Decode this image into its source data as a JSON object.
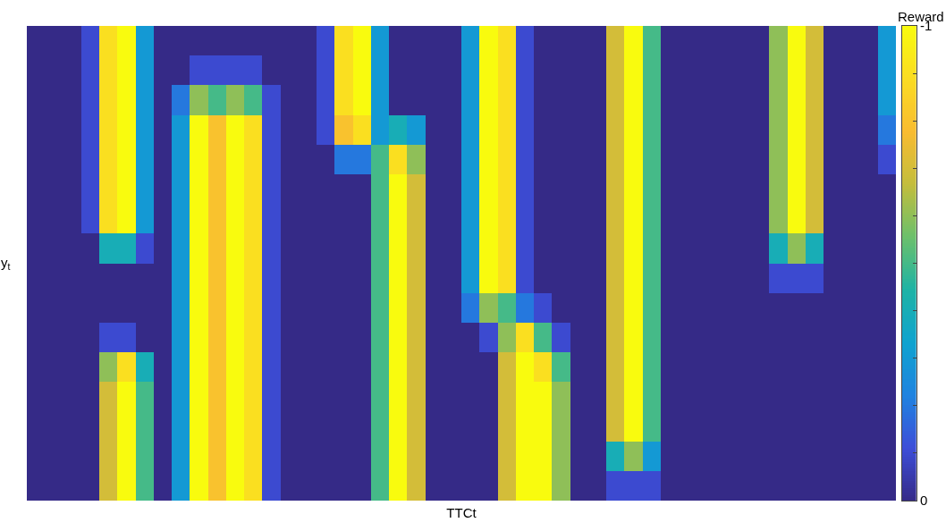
{
  "chart_data": {
    "type": "heatmap",
    "xlabel": "TTCt",
    "ylabel": "y$_{t}$",
    "clabel": "Reward",
    "categories": [
      null,
      null,
      null,
      null,
      null,
      null,
      null,
      null,
      null,
      null,
      null,
      null,
      null,
      null,
      null,
      null,
      null,
      null,
      null,
      null,
      null,
      null,
      null,
      null,
      null,
      null,
      null,
      null,
      null,
      null,
      null,
      null,
      null,
      null,
      null,
      null,
      null,
      null,
      null,
      null,
      null,
      null,
      null,
      null,
      null,
      null,
      null,
      null
    ],
    "y_categories": [
      null,
      null,
      null,
      null,
      null,
      null,
      null,
      null,
      null,
      null,
      null,
      null,
      null,
      null,
      null,
      null
    ],
    "clim": [
      0,
      -1
    ],
    "cticks": [
      0,
      {
        "value": -0.1,
        "label": null
      },
      {
        "value": -0.2,
        "label": null
      },
      {
        "value": -0.3,
        "label": null
      },
      {
        "value": -0.4,
        "label": null
      },
      {
        "value": -0.5,
        "label": null
      },
      {
        "value": -0.6,
        "label": null
      },
      {
        "value": -0.7,
        "label": null
      },
      {
        "value": -0.8,
        "label": null
      },
      {
        "value": -0.9,
        "label": null
      },
      -1
    ],
    "cells": [
      [
        0,
        0,
        0,
        -0.1,
        -0.9,
        -1,
        -0.3,
        0,
        0,
        0,
        0,
        0,
        0,
        0,
        0,
        0,
        -0.1,
        -0.9,
        -1,
        -0.3,
        0,
        0,
        0,
        0,
        -0.3,
        -1,
        -0.9,
        -0.1,
        0,
        0,
        0,
        0,
        -0.7,
        -1,
        -0.5,
        0,
        0,
        0,
        0,
        0,
        0,
        -0.6,
        -1,
        -0.7,
        0,
        0,
        0,
        -0.3
      ],
      [
        0,
        0,
        0,
        -0.1,
        -0.9,
        -1,
        -0.3,
        0,
        0,
        -0.1,
        -0.1,
        -0.1,
        -0.1,
        0,
        0,
        0,
        -0.1,
        -0.9,
        -1,
        -0.3,
        0,
        0,
        0,
        0,
        -0.3,
        -1,
        -0.9,
        -0.1,
        0,
        0,
        0,
        0,
        -0.7,
        -1,
        -0.5,
        0,
        0,
        0,
        0,
        0,
        0,
        -0.6,
        -1,
        -0.7,
        0,
        0,
        0,
        -0.3
      ],
      [
        0,
        0,
        0,
        -0.1,
        -0.9,
        -1,
        -0.3,
        0,
        -0.2,
        -0.6,
        -0.5,
        -0.6,
        -0.5,
        -0.1,
        0,
        0,
        -0.1,
        -0.9,
        -1,
        -0.3,
        0,
        0,
        0,
        0,
        -0.3,
        -1,
        -0.9,
        -0.1,
        0,
        0,
        0,
        0,
        -0.7,
        -1,
        -0.5,
        0,
        0,
        0,
        0,
        0,
        0,
        -0.6,
        -1,
        -0.7,
        0,
        0,
        0,
        -0.3
      ],
      [
        0,
        0,
        0,
        -0.1,
        -0.9,
        -1,
        -0.3,
        0,
        -0.3,
        -1,
        -0.8,
        -1,
        -0.9,
        -0.1,
        0,
        0,
        -0.1,
        -0.8,
        -0.9,
        -0.3,
        -0.4,
        -0.3,
        0,
        0,
        -0.3,
        -1,
        -0.9,
        -0.1,
        0,
        0,
        0,
        0,
        -0.7,
        -1,
        -0.5,
        0,
        0,
        0,
        0,
        0,
        0,
        -0.6,
        -1,
        -0.7,
        0,
        0,
        0,
        -0.2
      ],
      [
        0,
        0,
        0,
        -0.1,
        -0.9,
        -1,
        -0.3,
        0,
        -0.3,
        -1,
        -0.8,
        -1,
        -0.9,
        -0.1,
        0,
        0,
        0,
        -0.2,
        -0.2,
        -0.5,
        -0.9,
        -0.6,
        0,
        0,
        -0.3,
        -1,
        -0.9,
        -0.1,
        0,
        0,
        0,
        0,
        -0.7,
        -1,
        -0.5,
        0,
        0,
        0,
        0,
        0,
        0,
        -0.6,
        -1,
        -0.7,
        0,
        0,
        0,
        -0.1
      ],
      [
        0,
        0,
        0,
        -0.1,
        -0.9,
        -1,
        -0.3,
        0,
        -0.3,
        -1,
        -0.8,
        -1,
        -0.9,
        -0.1,
        0,
        0,
        0,
        0,
        0,
        -0.5,
        -1,
        -0.7,
        0,
        0,
        -0.3,
        -1,
        -0.9,
        -0.1,
        0,
        0,
        0,
        0,
        -0.7,
        -1,
        -0.5,
        0,
        0,
        0,
        0,
        0,
        0,
        -0.6,
        -1,
        -0.7,
        0,
        0,
        0,
        0
      ],
      [
        0,
        0,
        0,
        -0.1,
        -0.9,
        -1,
        -0.3,
        0,
        -0.3,
        -1,
        -0.8,
        -1,
        -0.9,
        -0.1,
        0,
        0,
        0,
        0,
        0,
        -0.5,
        -1,
        -0.7,
        0,
        0,
        -0.3,
        -1,
        -0.9,
        -0.1,
        0,
        0,
        0,
        0,
        -0.7,
        -1,
        -0.5,
        0,
        0,
        0,
        0,
        0,
        0,
        -0.6,
        -1,
        -0.7,
        0,
        0,
        0,
        0
      ],
      [
        0,
        0,
        0,
        0,
        -0.4,
        -0.4,
        -0.1,
        0,
        -0.3,
        -1,
        -0.8,
        -1,
        -0.9,
        -0.1,
        0,
        0,
        0,
        0,
        0,
        -0.5,
        -1,
        -0.7,
        0,
        0,
        -0.3,
        -1,
        -0.9,
        -0.1,
        0,
        0,
        0,
        0,
        -0.7,
        -1,
        -0.5,
        0,
        0,
        0,
        0,
        0,
        0,
        -0.4,
        -0.6,
        -0.4,
        0,
        0,
        0,
        0
      ],
      [
        0,
        0,
        0,
        0,
        0,
        0,
        0,
        0,
        -0.3,
        -1,
        -0.8,
        -1,
        -0.9,
        -0.1,
        0,
        0,
        0,
        0,
        0,
        -0.5,
        -1,
        -0.7,
        0,
        0,
        -0.3,
        -1,
        -0.9,
        -0.1,
        0,
        0,
        0,
        0,
        -0.7,
        -1,
        -0.5,
        0,
        0,
        0,
        0,
        0,
        0,
        -0.1,
        -0.1,
        -0.1,
        0,
        0,
        0,
        0
      ],
      [
        0,
        0,
        0,
        0,
        0,
        0,
        0,
        0,
        -0.3,
        -1,
        -0.8,
        -1,
        -0.9,
        -0.1,
        0,
        0,
        0,
        0,
        0,
        -0.5,
        -1,
        -0.7,
        0,
        0,
        -0.2,
        -0.6,
        -0.5,
        -0.2,
        -0.1,
        0,
        0,
        0,
        -0.7,
        -1,
        -0.5,
        0,
        0,
        0,
        0,
        0,
        0,
        0,
        0,
        0,
        0,
        0,
        0,
        0
      ],
      [
        0,
        0,
        0,
        0,
        -0.1,
        -0.1,
        0,
        0,
        -0.3,
        -1,
        -0.8,
        -1,
        -0.9,
        -0.1,
        0,
        0,
        0,
        0,
        0,
        -0.5,
        -1,
        -0.7,
        0,
        0,
        0,
        -0.1,
        -0.6,
        -0.9,
        -0.5,
        -0.1,
        0,
        0,
        -0.7,
        -1,
        -0.5,
        0,
        0,
        0,
        0,
        0,
        0,
        0,
        0,
        0,
        0,
        0,
        0,
        0
      ],
      [
        0,
        0,
        0,
        0,
        -0.6,
        -0.9,
        -0.4,
        0,
        -0.3,
        -1,
        -0.8,
        -1,
        -0.9,
        -0.1,
        0,
        0,
        0,
        0,
        0,
        -0.5,
        -1,
        -0.7,
        0,
        0,
        0,
        0,
        -0.7,
        -1,
        -0.9,
        -0.5,
        0,
        0,
        -0.7,
        -1,
        -0.5,
        0,
        0,
        0,
        0,
        0,
        0,
        0,
        0,
        0,
        0,
        0,
        0,
        0
      ],
      [
        0,
        0,
        0,
        0,
        -0.7,
        -1,
        -0.5,
        0,
        -0.3,
        -1,
        -0.8,
        -1,
        -0.9,
        -0.1,
        0,
        0,
        0,
        0,
        0,
        -0.5,
        -1,
        -0.7,
        0,
        0,
        0,
        0,
        -0.7,
        -1,
        -1,
        -0.6,
        0,
        0,
        -0.7,
        -1,
        -0.5,
        0,
        0,
        0,
        0,
        0,
        0,
        0,
        0,
        0,
        0,
        0,
        0,
        0
      ],
      [
        0,
        0,
        0,
        0,
        -0.7,
        -1,
        -0.5,
        0,
        -0.3,
        -1,
        -0.8,
        -1,
        -0.9,
        -0.1,
        0,
        0,
        0,
        0,
        0,
        -0.5,
        -1,
        -0.7,
        0,
        0,
        0,
        0,
        -0.7,
        -1,
        -1,
        -0.6,
        0,
        0,
        -0.7,
        -1,
        -0.5,
        0,
        0,
        0,
        0,
        0,
        0,
        0,
        0,
        0,
        0,
        0,
        0,
        0
      ],
      [
        0,
        0,
        0,
        0,
        -0.7,
        -1,
        -0.5,
        0,
        -0.3,
        -1,
        -0.8,
        -1,
        -0.9,
        -0.1,
        0,
        0,
        0,
        0,
        0,
        -0.5,
        -1,
        -0.7,
        0,
        0,
        0,
        0,
        -0.7,
        -1,
        -1,
        -0.6,
        0,
        0,
        -0.4,
        -0.6,
        -0.3,
        0,
        0,
        0,
        0,
        0,
        0,
        0,
        0,
        0,
        0,
        0,
        0,
        0
      ],
      [
        0,
        0,
        0,
        0,
        -0.7,
        -1,
        -0.5,
        0,
        -0.3,
        -1,
        -0.8,
        -1,
        -0.9,
        -0.1,
        0,
        0,
        0,
        0,
        0,
        -0.5,
        -1,
        -0.7,
        0,
        0,
        0,
        0,
        -0.7,
        -1,
        -1,
        -0.6,
        0,
        0,
        -0.1,
        -0.1,
        -0.1,
        0,
        0,
        0,
        0,
        0,
        0,
        0,
        0,
        0,
        0,
        0,
        0,
        0
      ]
    ]
  }
}
